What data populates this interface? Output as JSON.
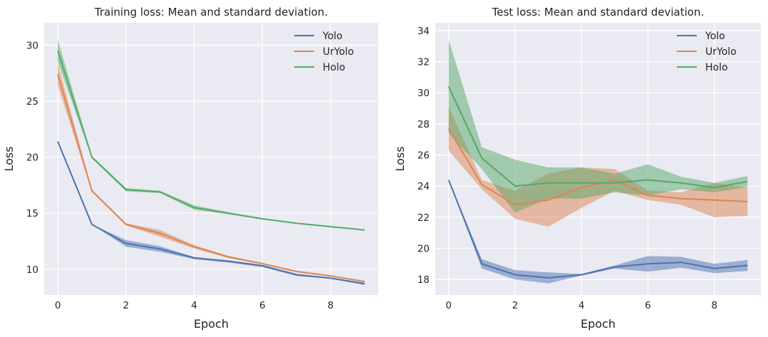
{
  "chart_data": [
    {
      "type": "line",
      "title": "Training loss: Mean and standard deviation.",
      "xlabel": "Epoch",
      "ylabel": "Loss",
      "xlim": [
        -0.4,
        9.4
      ],
      "ylim": [
        7.7,
        32.0
      ],
      "xticks": [
        0,
        2,
        4,
        6,
        8
      ],
      "yticks": [
        10,
        15,
        20,
        25,
        30
      ],
      "grid": true,
      "legend_position": "top-right",
      "x": [
        0,
        1,
        2,
        3,
        4,
        5,
        6,
        7,
        8,
        9
      ],
      "series": [
        {
          "name": "Yolo",
          "color": "#4c72b0",
          "values": [
            21.4,
            14.0,
            12.3,
            11.8,
            11.0,
            10.7,
            10.3,
            9.5,
            9.2,
            8.7
          ],
          "std": [
            0,
            0,
            0.3,
            0.25,
            0.1,
            0.1,
            0.1,
            0.1,
            0.05,
            0.1
          ]
        },
        {
          "name": "UrYolo",
          "color": "#dd8452",
          "values": [
            27.4,
            17.0,
            14.0,
            13.2,
            12.0,
            11.1,
            10.5,
            9.8,
            9.4,
            8.9
          ],
          "std": [
            1.0,
            0.1,
            0.1,
            0.3,
            0.15,
            0.1,
            0.05,
            0.05,
            0.05,
            0.05
          ]
        },
        {
          "name": "Holo",
          "color": "#55a868",
          "values": [
            29.5,
            20.0,
            17.1,
            16.9,
            15.5,
            15.0,
            14.5,
            14.1,
            13.8,
            13.5
          ],
          "std": [
            1.0,
            0.1,
            0.15,
            0.1,
            0.2,
            0.1,
            0.05,
            0.05,
            0.05,
            0.05
          ]
        }
      ]
    },
    {
      "type": "line",
      "title": "Test loss: Mean and standard deviation.",
      "xlabel": "Epoch",
      "ylabel": "Loss",
      "xlim": [
        -0.4,
        9.4
      ],
      "ylim": [
        17.0,
        34.5
      ],
      "xticks": [
        0,
        2,
        4,
        6,
        8
      ],
      "yticks": [
        18,
        20,
        22,
        24,
        26,
        28,
        30,
        32,
        34
      ],
      "grid": true,
      "legend_position": "top-right",
      "x": [
        0,
        1,
        2,
        3,
        4,
        5,
        6,
        7,
        8,
        9
      ],
      "series": [
        {
          "name": "Yolo",
          "color": "#4c72b0",
          "values": [
            24.4,
            19.0,
            18.3,
            18.1,
            18.3,
            18.8,
            19.0,
            19.1,
            18.7,
            18.9
          ],
          "std": [
            0,
            0.3,
            0.3,
            0.35,
            0.05,
            0.1,
            0.5,
            0.35,
            0.3,
            0.35
          ]
        },
        {
          "name": "UrYolo",
          "color": "#dd8452",
          "values": [
            27.7,
            24.1,
            22.8,
            23.1,
            23.9,
            24.4,
            23.4,
            23.2,
            23.1,
            23.0
          ],
          "std": [
            1.4,
            0.3,
            0.9,
            1.7,
            1.3,
            0.7,
            0.3,
            0.4,
            1.1,
            0.9
          ]
        },
        {
          "name": "Holo",
          "color": "#55a868",
          "values": [
            30.4,
            25.8,
            24.0,
            24.2,
            24.2,
            24.2,
            24.4,
            24.2,
            23.9,
            24.3
          ],
          "std": [
            3.0,
            0.7,
            1.7,
            1.0,
            1.0,
            0.6,
            1.0,
            0.4,
            0.3,
            0.35
          ]
        }
      ]
    }
  ]
}
